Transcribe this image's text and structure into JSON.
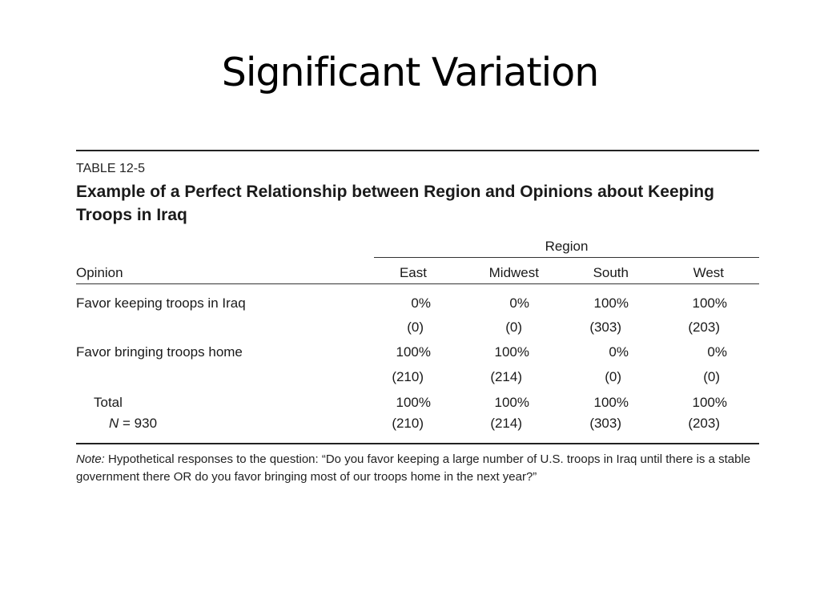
{
  "slide_title": "Significant Variation",
  "table": {
    "label": "TABLE 12-5",
    "caption": "Example of a Perfect Relationship between Region and Opinions about Keeping Troops in Iraq",
    "spanner": "Region",
    "row_header": "Opinion",
    "columns": [
      "East",
      "Midwest",
      "South",
      "West"
    ],
    "rows": [
      {
        "label": "Favor keeping troops in Iraq",
        "percents": [
          "0%",
          "0%",
          "100%",
          "100%"
        ],
        "counts": [
          "(0)",
          "(0)",
          "(303)",
          "(203)"
        ]
      },
      {
        "label": "Favor bringing troops home",
        "percents": [
          "100%",
          "100%",
          "0%",
          "0%"
        ],
        "counts": [
          "(210)",
          "(214)",
          "(0)",
          "(0)"
        ]
      }
    ],
    "total": {
      "label": "Total",
      "n_symbol": "N",
      "n_text": " = 930",
      "percents": [
        "100%",
        "100%",
        "100%",
        "100%"
      ],
      "counts": [
        "(210)",
        "(214)",
        "(303)",
        "(203)"
      ]
    },
    "note_label": "Note:",
    "note_text": " Hypothetical responses to the question: “Do you favor keeping a large number of U.S. troops in Iraq until there is a stable government there OR do you favor bringing most of our troops home in the next year?”"
  }
}
